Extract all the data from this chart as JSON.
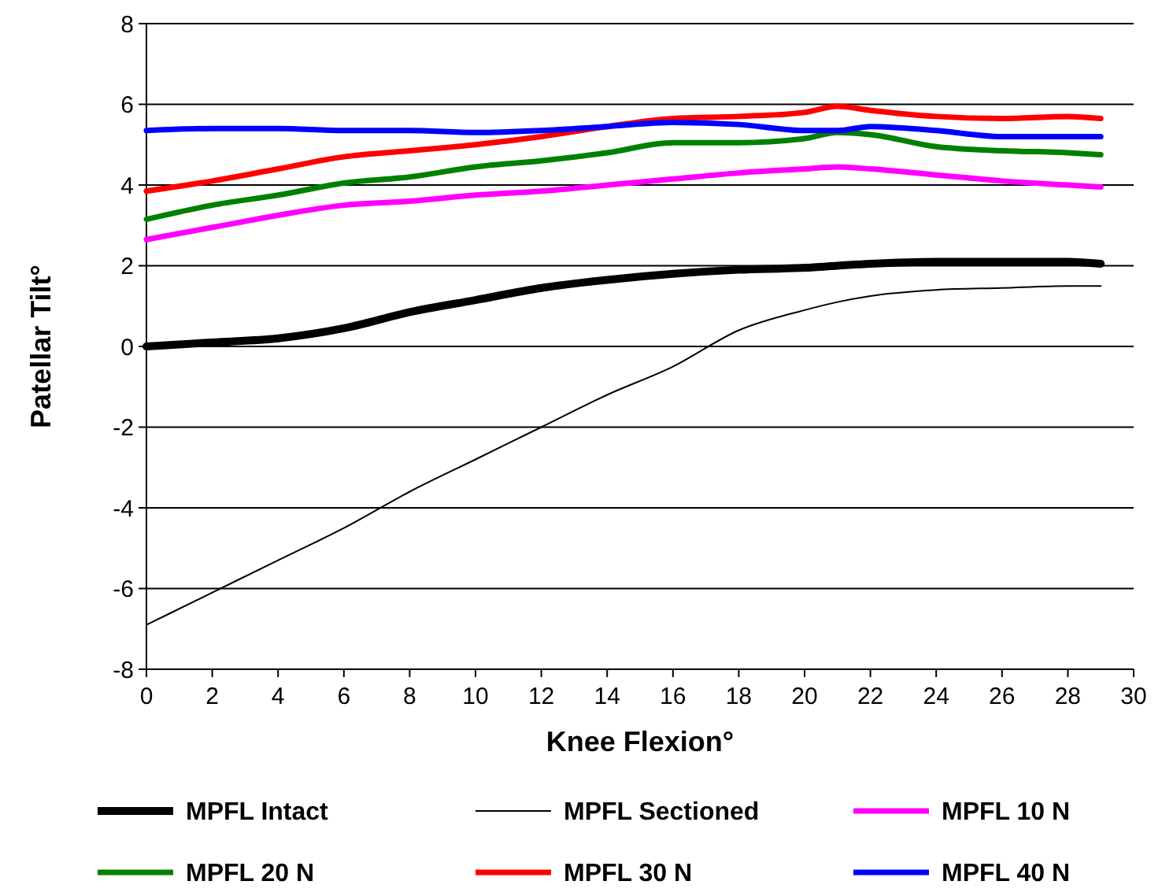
{
  "chart_data": {
    "type": "line",
    "xlabel": "Knee Flexion°",
    "ylabel": "Patellar Tilt°",
    "xlim": [
      0,
      30
    ],
    "xticks": [
      0,
      2,
      4,
      6,
      8,
      10,
      12,
      14,
      16,
      18,
      20,
      22,
      24,
      26,
      28,
      30
    ],
    "ylim": [
      -8,
      8
    ],
    "yticks": [
      -8,
      -6,
      -4,
      -2,
      0,
      2,
      4,
      6,
      8
    ],
    "grid": "y",
    "legend": "bottom",
    "x": [
      0,
      2,
      4,
      6,
      8,
      10,
      12,
      14,
      16,
      18,
      20,
      21,
      22,
      24,
      26,
      28,
      29
    ],
    "series": [
      {
        "name": "MPFL Intact",
        "color": "#000000",
        "values": [
          0,
          0.1,
          0.2,
          0.45,
          0.85,
          1.15,
          1.45,
          1.65,
          1.8,
          1.9,
          1.95,
          2,
          2.05,
          2.1,
          2.1,
          2.1,
          2.05
        ]
      },
      {
        "name": "MPFL Sectioned",
        "color": "#000000",
        "values": [
          -6.9,
          -6.1,
          -5.3,
          -4.5,
          -3.6,
          -2.8,
          -2,
          -1.2,
          -0.5,
          0.4,
          0.9,
          1.1,
          1.25,
          1.4,
          1.45,
          1.5,
          1.5
        ]
      },
      {
        "name": "MPFL 10 N",
        "color": "#ff00ff",
        "values": [
          2.65,
          2.95,
          3.25,
          3.5,
          3.6,
          3.75,
          3.85,
          4,
          4.15,
          4.3,
          4.4,
          4.45,
          4.4,
          4.25,
          4.1,
          4,
          3.95
        ]
      },
      {
        "name": "MPFL 20 N",
        "color": "#008000",
        "values": [
          3.15,
          3.5,
          3.75,
          4.05,
          4.2,
          4.45,
          4.6,
          4.8,
          5.05,
          5.05,
          5.15,
          5.3,
          5.25,
          4.95,
          4.85,
          4.8,
          4.75
        ]
      },
      {
        "name": "MPFL 30 N",
        "color": "#ff0000",
        "values": [
          3.85,
          4.1,
          4.4,
          4.7,
          4.85,
          5,
          5.2,
          5.45,
          5.65,
          5.7,
          5.8,
          5.95,
          5.85,
          5.7,
          5.65,
          5.7,
          5.65
        ]
      },
      {
        "name": "MPFL 40 N",
        "color": "#0000ff",
        "values": [
          5.35,
          5.4,
          5.4,
          5.35,
          5.35,
          5.3,
          5.35,
          5.45,
          5.55,
          5.5,
          5.35,
          5.35,
          5.45,
          5.35,
          5.2,
          5.2,
          5.2
        ]
      }
    ]
  }
}
